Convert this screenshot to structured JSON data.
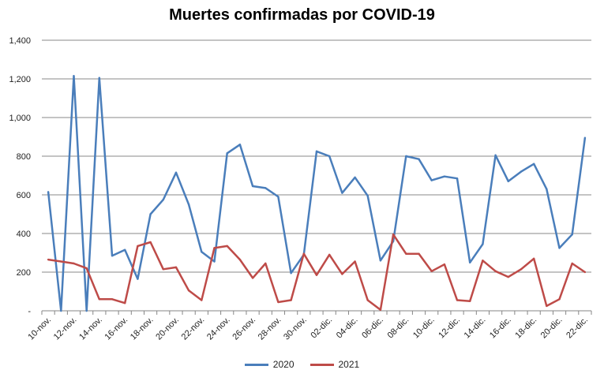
{
  "chart_data": {
    "type": "line",
    "title": "Muertes confirmadas por COVID-19",
    "xlabel": "",
    "ylabel": "",
    "ylim": [
      0,
      1400
    ],
    "yticks": [
      "-",
      "200",
      "400",
      "600",
      "800",
      "1,000",
      "1,200",
      "1,400"
    ],
    "grid": true,
    "legend": "bottom",
    "x": [
      "10-nov.",
      "11-nov.",
      "12-nov.",
      "13-nov.",
      "14-nov.",
      "15-nov.",
      "16-nov.",
      "17-nov.",
      "18-nov.",
      "19-nov.",
      "20-nov.",
      "21-nov.",
      "22-nov.",
      "23-nov.",
      "24-nov.",
      "25-nov.",
      "26-nov.",
      "27-nov.",
      "28-nov.",
      "29-nov.",
      "30-nov.",
      "01-dic.",
      "02-dic.",
      "03-dic.",
      "04-dic.",
      "05-dic.",
      "06-dic.",
      "07-dic.",
      "08-dic.",
      "09-dic.",
      "10-dic.",
      "11-dic.",
      "12-dic.",
      "13-dic.",
      "14-dic.",
      "15-dic.",
      "16-dic.",
      "17-dic.",
      "18-dic.",
      "19-dic.",
      "20-dic.",
      "21-dic.",
      "22-dic."
    ],
    "xtick_labels": [
      "10-nov.",
      "12-nov.",
      "14-nov.",
      "16-nov.",
      "18-nov.",
      "20-nov.",
      "22-nov.",
      "24-nov.",
      "26-nov.",
      "28-nov.",
      "30-nov.",
      "02-dic.",
      "04-dic.",
      "06-dic.",
      "08-dic.",
      "10-dic.",
      "12-dic.",
      "14-dic.",
      "16-dic.",
      "18-dic.",
      "20-dic.",
      "22-dic."
    ],
    "series": [
      {
        "name": "2020",
        "color": "#4a7ebb",
        "values": [
          615,
          0,
          1215,
          0,
          1205,
          285,
          315,
          165,
          500,
          575,
          715,
          550,
          305,
          255,
          815,
          860,
          645,
          635,
          590,
          195,
          290,
          825,
          800,
          610,
          690,
          595,
          260,
          360,
          800,
          785,
          675,
          695,
          685,
          250,
          345,
          805,
          670,
          720,
          760,
          630,
          325,
          395,
          895
        ]
      },
      {
        "name": "2021",
        "color": "#be4b48",
        "values": [
          265,
          255,
          245,
          220,
          60,
          60,
          40,
          335,
          355,
          215,
          225,
          105,
          55,
          325,
          335,
          265,
          170,
          245,
          45,
          55,
          295,
          185,
          290,
          190,
          255,
          55,
          5,
          395,
          295,
          295,
          205,
          240,
          55,
          50,
          260,
          205,
          175,
          215,
          270,
          25,
          60,
          245,
          200
        ]
      }
    ]
  }
}
